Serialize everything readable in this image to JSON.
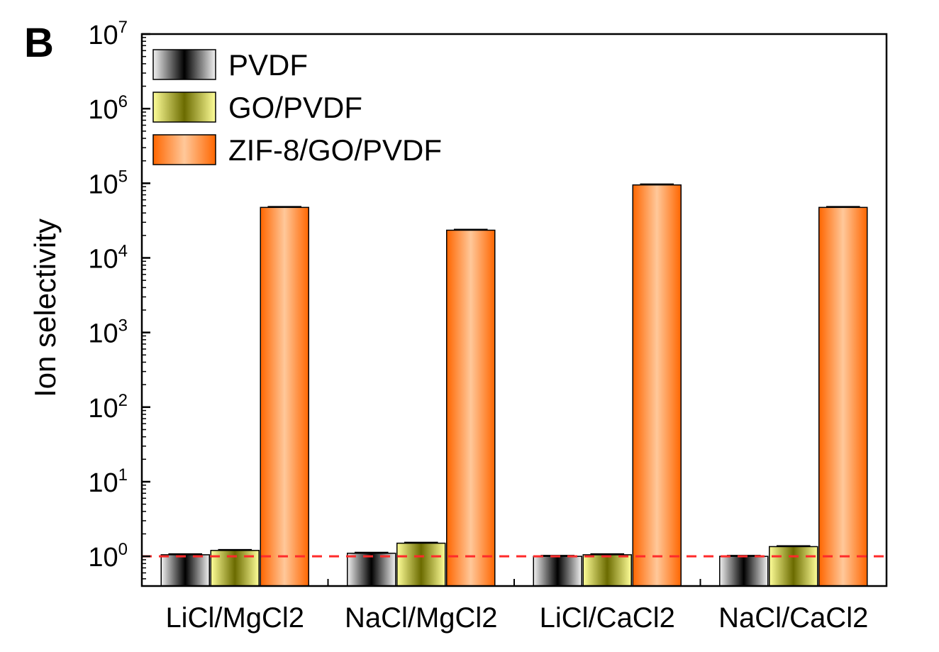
{
  "panel_label": "B",
  "chart_data": {
    "type": "bar",
    "title": "",
    "xlabel": "",
    "ylabel": "Ion selectivity",
    "yscale": "log",
    "ylim": [
      0.4,
      10000000
    ],
    "y_ticks": [
      {
        "value": 1,
        "base": "10",
        "exp": "0"
      },
      {
        "value": 10,
        "base": "10",
        "exp": "1"
      },
      {
        "value": 100,
        "base": "10",
        "exp": "2"
      },
      {
        "value": 1000,
        "base": "10",
        "exp": "3"
      },
      {
        "value": 10000,
        "base": "10",
        "exp": "4"
      },
      {
        "value": 100000,
        "base": "10",
        "exp": "5"
      },
      {
        "value": 1000000,
        "base": "10",
        "exp": "6"
      },
      {
        "value": 10000000,
        "base": "10",
        "exp": "7"
      }
    ],
    "categories": [
      "LiCl/MgCl2",
      "NaCl/MgCl2",
      "LiCl/CaCl2",
      "NaCl/CaCl2"
    ],
    "series": [
      {
        "name": "PVDF",
        "values": [
          1.05,
          1.1,
          1.0,
          1.0
        ],
        "color": "#808080",
        "gradient": [
          "#f2f2f2",
          "#000000",
          "#f2f2f2"
        ]
      },
      {
        "name": "GO/PVDF",
        "values": [
          1.2,
          1.5,
          1.05,
          1.35
        ],
        "color": "#a3a32a",
        "gradient": [
          "#ffff99",
          "#6b6b00",
          "#ffff99"
        ]
      },
      {
        "name": "ZIF-8/GO/PVDF",
        "values": [
          47500,
          23500,
          95000,
          47500
        ],
        "color": "#ff7f2a",
        "gradient": [
          "#ff6600",
          "#ffc89a",
          "#ff6600"
        ]
      }
    ],
    "reference_line": {
      "value": 1,
      "style": "dashed",
      "color": "#ff2a2a"
    },
    "legend_position": "top-left",
    "grid": false
  }
}
